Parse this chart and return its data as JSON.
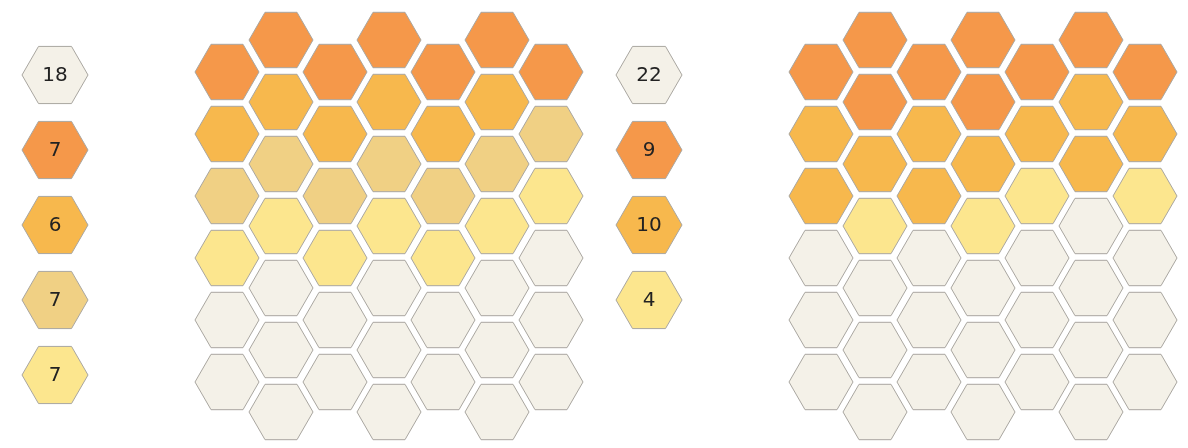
{
  "chart_data": [
    {
      "type": "other",
      "categories": [
        null,
        null,
        null,
        null,
        null
      ],
      "values": [
        18,
        7,
        6,
        7,
        7
      ],
      "colors": [
        "#f4f1e8",
        "#f5984a",
        "#f7b84d",
        "#f0d084",
        "#fce68e"
      ],
      "data_labels": true
    },
    {
      "type": "other",
      "categories": [
        null,
        null,
        null,
        null
      ],
      "values": [
        22,
        9,
        10,
        4
      ],
      "colors": [
        "#f4f1e8",
        "#f5984a",
        "#f7b84d",
        "#fce68e"
      ],
      "data_labels": true
    }
  ]
}
